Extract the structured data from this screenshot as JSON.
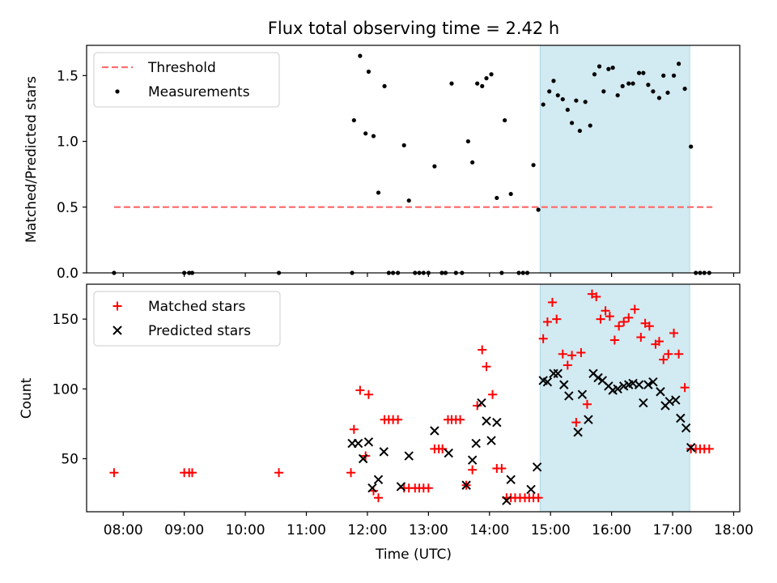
{
  "title": "Flux total observing time = 2.42 h",
  "colors": {
    "threshold": "#ff6f6f",
    "matched": "#ff0000",
    "predicted": "#000000",
    "measurement": "#000000",
    "shade": "#add8e6"
  },
  "chart_data": [
    {
      "type": "scatter",
      "panel": "top",
      "xlabel": "",
      "ylabel": "Matched/Predicted stars",
      "xlim": [
        7.4,
        18.1
      ],
      "ylim": [
        0,
        1.73
      ],
      "yticks": [
        0.0,
        0.5,
        1.0,
        1.5
      ],
      "ytick_labels": [
        "0.0",
        "0.5",
        "1.0",
        "1.5"
      ],
      "shaded_region": [
        14.83,
        17.28
      ],
      "legend": {
        "position": "top-left",
        "entries": [
          "Threshold",
          "Measurements"
        ]
      },
      "threshold": {
        "name": "Threshold",
        "y": 0.5,
        "x": [
          7.85,
          17.65
        ]
      },
      "measurements": {
        "name": "Measurements",
        "points": [
          [
            7.85,
            0.0
          ],
          [
            9.0,
            0.0
          ],
          [
            9.08,
            0.0
          ],
          [
            9.13,
            0.0
          ],
          [
            10.55,
            0.0
          ],
          [
            11.75,
            0.0
          ],
          [
            11.78,
            1.16
          ],
          [
            11.88,
            1.65
          ],
          [
            11.97,
            1.06
          ],
          [
            12.02,
            1.53
          ],
          [
            12.1,
            1.04
          ],
          [
            12.18,
            0.61
          ],
          [
            12.28,
            1.42
          ],
          [
            12.35,
            0.0
          ],
          [
            12.42,
            0.0
          ],
          [
            12.5,
            0.0
          ],
          [
            12.6,
            0.97
          ],
          [
            12.68,
            0.55
          ],
          [
            12.78,
            0.0
          ],
          [
            12.85,
            0.0
          ],
          [
            12.92,
            0.0
          ],
          [
            13.0,
            0.0
          ],
          [
            13.1,
            0.81
          ],
          [
            13.22,
            0.0
          ],
          [
            13.28,
            0.0
          ],
          [
            13.38,
            1.44
          ],
          [
            13.45,
            0.0
          ],
          [
            13.55,
            0.0
          ],
          [
            13.65,
            1.0
          ],
          [
            13.72,
            0.84
          ],
          [
            13.8,
            1.44
          ],
          [
            13.88,
            1.42
          ],
          [
            13.95,
            1.48
          ],
          [
            14.03,
            1.51
          ],
          [
            14.12,
            0.57
          ],
          [
            14.2,
            0.0
          ],
          [
            14.25,
            1.16
          ],
          [
            14.35,
            0.6
          ],
          [
            14.48,
            0.0
          ],
          [
            14.55,
            0.0
          ],
          [
            14.62,
            0.0
          ],
          [
            14.72,
            0.82
          ],
          [
            14.8,
            0.48
          ],
          [
            14.88,
            1.28
          ],
          [
            14.98,
            1.38
          ],
          [
            15.05,
            1.46
          ],
          [
            15.12,
            1.35
          ],
          [
            15.2,
            1.32
          ],
          [
            15.28,
            1.24
          ],
          [
            15.35,
            1.14
          ],
          [
            15.42,
            1.31
          ],
          [
            15.48,
            1.08
          ],
          [
            15.57,
            1.3
          ],
          [
            15.65,
            1.12
          ],
          [
            15.72,
            1.51
          ],
          [
            15.8,
            1.57
          ],
          [
            15.87,
            1.38
          ],
          [
            15.95,
            1.55
          ],
          [
            16.02,
            1.56
          ],
          [
            16.1,
            1.35
          ],
          [
            16.18,
            1.42
          ],
          [
            16.28,
            1.44
          ],
          [
            16.35,
            1.44
          ],
          [
            16.45,
            1.52
          ],
          [
            16.52,
            1.52
          ],
          [
            16.6,
            1.43
          ],
          [
            16.68,
            1.38
          ],
          [
            16.78,
            1.33
          ],
          [
            16.85,
            1.5
          ],
          [
            16.92,
            1.37
          ],
          [
            17.02,
            1.5
          ],
          [
            17.1,
            1.59
          ],
          [
            17.2,
            1.4
          ],
          [
            17.3,
            0.96
          ],
          [
            17.38,
            0.0
          ],
          [
            17.45,
            0.0
          ],
          [
            17.52,
            0.0
          ],
          [
            17.6,
            0.0
          ]
        ]
      }
    },
    {
      "type": "scatter",
      "panel": "bottom",
      "xlabel": "Time (UTC)",
      "ylabel": "Count",
      "xlim": [
        7.4,
        18.1
      ],
      "ylim": [
        12,
        175
      ],
      "yticks": [
        50,
        100,
        150
      ],
      "ytick_labels": [
        "50",
        "100",
        "150"
      ],
      "xticks": [
        8,
        9,
        10,
        11,
        12,
        13,
        14,
        15,
        16,
        17,
        18
      ],
      "xtick_labels": [
        "08:00",
        "09:00",
        "10:00",
        "11:00",
        "12:00",
        "13:00",
        "14:00",
        "15:00",
        "16:00",
        "17:00",
        "18:00"
      ],
      "shaded_region": [
        14.83,
        17.28
      ],
      "legend": {
        "position": "top-left",
        "entries": [
          "Matched stars",
          "Predicted stars"
        ]
      },
      "series": [
        {
          "name": "Matched stars",
          "marker": "+",
          "points": [
            [
              7.85,
              40
            ],
            [
              9.0,
              40
            ],
            [
              9.08,
              40
            ],
            [
              9.13,
              40
            ],
            [
              10.55,
              40
            ],
            [
              11.73,
              40
            ],
            [
              11.78,
              71
            ],
            [
              11.88,
              99
            ],
            [
              11.97,
              52
            ],
            [
              12.02,
              96
            ],
            [
              12.1,
              27
            ],
            [
              12.18,
              22
            ],
            [
              12.28,
              78
            ],
            [
              12.35,
              78
            ],
            [
              12.42,
              78
            ],
            [
              12.5,
              78
            ],
            [
              12.6,
              29
            ],
            [
              12.68,
              29
            ],
            [
              12.78,
              29
            ],
            [
              12.85,
              29
            ],
            [
              12.92,
              29
            ],
            [
              13.0,
              29
            ],
            [
              13.1,
              57
            ],
            [
              13.17,
              57
            ],
            [
              13.23,
              57
            ],
            [
              13.32,
              78
            ],
            [
              13.38,
              78
            ],
            [
              13.45,
              78
            ],
            [
              13.52,
              78
            ],
            [
              13.62,
              31
            ],
            [
              13.72,
              42
            ],
            [
              13.8,
              88
            ],
            [
              13.88,
              128
            ],
            [
              13.95,
              116
            ],
            [
              14.05,
              96
            ],
            [
              14.12,
              43
            ],
            [
              14.2,
              43
            ],
            [
              14.28,
              22
            ],
            [
              14.35,
              22
            ],
            [
              14.42,
              22
            ],
            [
              14.5,
              22
            ],
            [
              14.58,
              22
            ],
            [
              14.65,
              22
            ],
            [
              14.72,
              22
            ],
            [
              14.8,
              22
            ],
            [
              14.88,
              136
            ],
            [
              14.95,
              148
            ],
            [
              15.03,
              162
            ],
            [
              15.1,
              150
            ],
            [
              15.2,
              125
            ],
            [
              15.28,
              117
            ],
            [
              15.35,
              124
            ],
            [
              15.42,
              76
            ],
            [
              15.5,
              126
            ],
            [
              15.6,
              89
            ],
            [
              15.68,
              168
            ],
            [
              15.75,
              166
            ],
            [
              15.82,
              150
            ],
            [
              15.9,
              156
            ],
            [
              15.97,
              152
            ],
            [
              16.05,
              135
            ],
            [
              16.12,
              145
            ],
            [
              16.2,
              148
            ],
            [
              16.28,
              151
            ],
            [
              16.38,
              157
            ],
            [
              16.48,
              137
            ],
            [
              16.55,
              147
            ],
            [
              16.62,
              145
            ],
            [
              16.72,
              132
            ],
            [
              16.78,
              134
            ],
            [
              16.85,
              121
            ],
            [
              16.93,
              125
            ],
            [
              17.02,
              140
            ],
            [
              17.1,
              125
            ],
            [
              17.2,
              101
            ],
            [
              17.3,
              57
            ],
            [
              17.38,
              57
            ],
            [
              17.45,
              57
            ],
            [
              17.52,
              57
            ],
            [
              17.6,
              57
            ]
          ]
        },
        {
          "name": "Predicted stars",
          "marker": "x",
          "points": [
            [
              11.75,
              61
            ],
            [
              11.85,
              61
            ],
            [
              11.93,
              50
            ],
            [
              12.02,
              62
            ],
            [
              12.08,
              29
            ],
            [
              12.18,
              35
            ],
            [
              12.27,
              55
            ],
            [
              12.55,
              30
            ],
            [
              12.68,
              52
            ],
            [
              13.1,
              70
            ],
            [
              13.33,
              54
            ],
            [
              13.62,
              31
            ],
            [
              13.72,
              49
            ],
            [
              13.78,
              61
            ],
            [
              13.87,
              90
            ],
            [
              13.95,
              77
            ],
            [
              14.03,
              63
            ],
            [
              14.12,
              76
            ],
            [
              14.28,
              20
            ],
            [
              14.35,
              35
            ],
            [
              14.68,
              28
            ],
            [
              14.78,
              44
            ],
            [
              14.88,
              106
            ],
            [
              14.95,
              105
            ],
            [
              15.05,
              111
            ],
            [
              15.12,
              111
            ],
            [
              15.22,
              103
            ],
            [
              15.3,
              95
            ],
            [
              15.45,
              69
            ],
            [
              15.52,
              96
            ],
            [
              15.62,
              78
            ],
            [
              15.7,
              111
            ],
            [
              15.78,
              108
            ],
            [
              15.85,
              106
            ],
            [
              15.95,
              102
            ],
            [
              16.02,
              99
            ],
            [
              16.1,
              100
            ],
            [
              16.2,
              102
            ],
            [
              16.28,
              103
            ],
            [
              16.35,
              104
            ],
            [
              16.45,
              103
            ],
            [
              16.52,
              90
            ],
            [
              16.6,
              103
            ],
            [
              16.68,
              105
            ],
            [
              16.8,
              98
            ],
            [
              16.88,
              88
            ],
            [
              16.95,
              91
            ],
            [
              17.05,
              92
            ],
            [
              17.13,
              79
            ],
            [
              17.22,
              72
            ],
            [
              17.3,
              58
            ]
          ]
        }
      ]
    }
  ]
}
